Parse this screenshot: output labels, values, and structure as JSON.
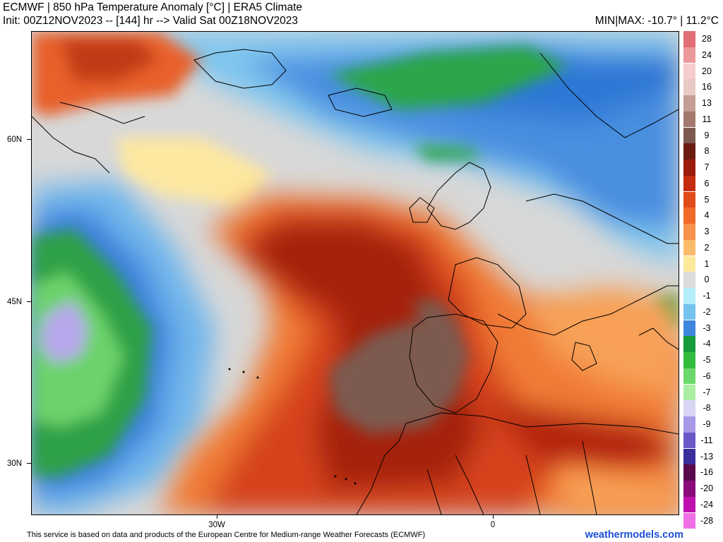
{
  "header": {
    "title": "ECMWF | 850 hPa Temperature Anomaly [°C] | ERA5 Climate",
    "subtitle": "Init: 00Z12NOV2023 -- [144] hr --> Valid Sat 00Z18NOV2023",
    "minmax": "MIN|MAX: -10.7° | 11.2°C"
  },
  "axes": {
    "lat_labels": [
      "60N",
      "45N",
      "30N"
    ],
    "lon_labels": [
      "30W",
      "0"
    ]
  },
  "colorbar": {
    "entries": [
      {
        "label": "28",
        "color": "#e06e74"
      },
      {
        "label": "24",
        "color": "#ec999c"
      },
      {
        "label": "20",
        "color": "#f6cccd"
      },
      {
        "label": "16",
        "color": "#e8c9c4"
      },
      {
        "label": "13",
        "color": "#c49d94"
      },
      {
        "label": "11",
        "color": "#a3796d"
      },
      {
        "label": "9",
        "color": "#7d5a50"
      },
      {
        "label": "8",
        "color": "#6b1b10"
      },
      {
        "label": "7",
        "color": "#9c1c0e"
      },
      {
        "label": "6",
        "color": "#c62c10"
      },
      {
        "label": "5",
        "color": "#e24a1a"
      },
      {
        "label": "4",
        "color": "#f16a2a"
      },
      {
        "label": "3",
        "color": "#f7924a"
      },
      {
        "label": "2",
        "color": "#fbbb6a"
      },
      {
        "label": "1",
        "color": "#fde89e"
      },
      {
        "label": "0",
        "color": "#dcdcdc"
      },
      {
        "label": "-1",
        "color": "#b4ecfa"
      },
      {
        "label": "-2",
        "color": "#74c2ee"
      },
      {
        "label": "-3",
        "color": "#3f86de"
      },
      {
        "label": "-4",
        "color": "#169a3c"
      },
      {
        "label": "-5",
        "color": "#33bb3e"
      },
      {
        "label": "-6",
        "color": "#6cd86c"
      },
      {
        "label": "-7",
        "color": "#aaeea4"
      },
      {
        "label": "-8",
        "color": "#d8d4f4"
      },
      {
        "label": "-9",
        "color": "#a898e8"
      },
      {
        "label": "-11",
        "color": "#6a58c6"
      },
      {
        "label": "-13",
        "color": "#3a2e9c"
      },
      {
        "label": "-16",
        "color": "#5a0a4c"
      },
      {
        "label": "-20",
        "color": "#8a0a7a"
      },
      {
        "label": "-24",
        "color": "#c010b0"
      },
      {
        "label": "-28",
        "color": "#f070e8"
      }
    ]
  },
  "footer": {
    "attribution": "This service is based on data and products of the European Centre for Medium-range Weather Forecasts (ECMWF)",
    "brand": "weathermodels.com"
  }
}
